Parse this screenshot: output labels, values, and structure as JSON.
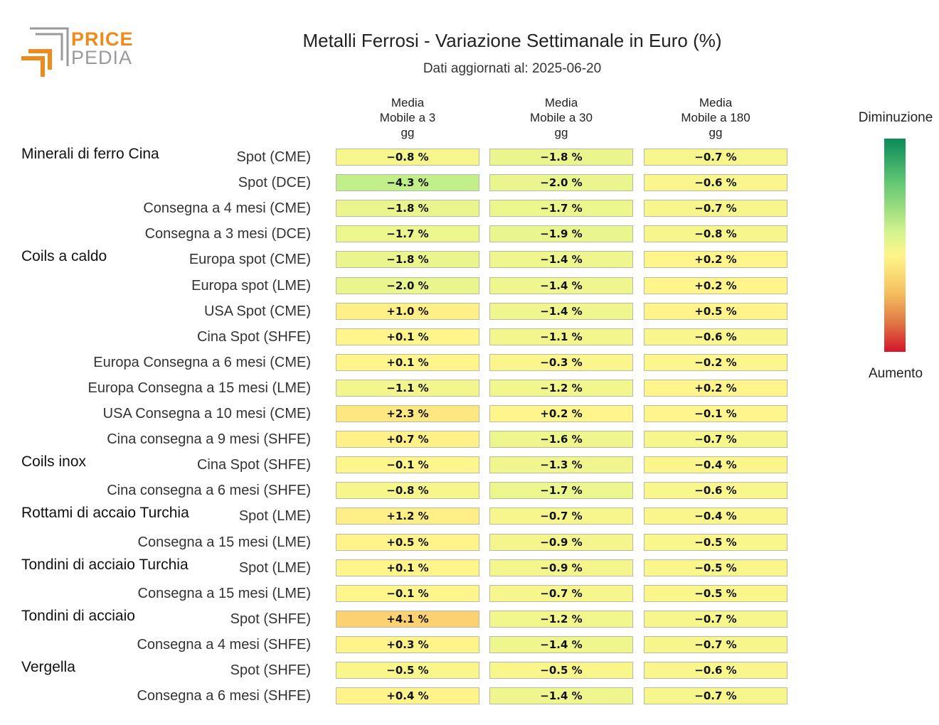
{
  "logo": {
    "line1": "PRICE",
    "line2": "PEDIA"
  },
  "chart_data": {
    "type": "heatmap",
    "title": "Metalli Ferrosi - Variazione Settimanale in Euro (%)",
    "subtitle": "Dati aggiornati al: 2025-06-20",
    "columns": [
      "Media\nMobile a 3\ngg",
      "Media\nMobile a 30\ngg",
      "Media\nMobile a 180\ngg"
    ],
    "groups": [
      {
        "name": "Minerali di ferro Cina",
        "rows": [
          {
            "label": "Spot (CME)",
            "values": [
              -0.8,
              -1.8,
              -0.7
            ]
          },
          {
            "label": "Spot (DCE)",
            "values": [
              -4.3,
              -2.0,
              -0.6
            ]
          },
          {
            "label": "Consegna a 4 mesi (CME)",
            "values": [
              -1.8,
              -1.7,
              -0.7
            ]
          },
          {
            "label": "Consegna a 3 mesi (DCE)",
            "values": [
              -1.7,
              -1.9,
              -0.8
            ]
          }
        ]
      },
      {
        "name": "Coils a caldo",
        "rows": [
          {
            "label": "Europa spot (CME)",
            "values": [
              -1.8,
              -1.4,
              0.2
            ]
          },
          {
            "label": "Europa spot (LME)",
            "values": [
              -2.0,
              -1.4,
              0.2
            ]
          },
          {
            "label": "USA Spot (CME)",
            "values": [
              1.0,
              -1.4,
              0.5
            ]
          },
          {
            "label": "Cina Spot (SHFE)",
            "values": [
              0.1,
              -1.1,
              -0.6
            ]
          },
          {
            "label": "Europa Consegna a 6 mesi (CME)",
            "values": [
              0.1,
              -0.3,
              -0.2
            ]
          },
          {
            "label": "Europa Consegna a 15 mesi (LME)",
            "values": [
              -1.1,
              -1.2,
              0.2
            ]
          },
          {
            "label": "USA Consegna a 10 mesi (CME)",
            "values": [
              2.3,
              0.2,
              -0.1
            ]
          },
          {
            "label": "Cina consegna a 9 mesi (SHFE)",
            "values": [
              0.7,
              -1.6,
              -0.7
            ]
          }
        ]
      },
      {
        "name": "Coils inox",
        "rows": [
          {
            "label": "Cina Spot (SHFE)",
            "values": [
              -0.1,
              -1.3,
              -0.4
            ]
          },
          {
            "label": "Cina consegna a 6 mesi (SHFE)",
            "values": [
              -0.8,
              -1.7,
              -0.6
            ]
          }
        ]
      },
      {
        "name": "Rottami di accaio Turchia",
        "rows": [
          {
            "label": "Spot (LME)",
            "values": [
              1.2,
              -0.7,
              -0.4
            ]
          },
          {
            "label": "Consegna a 15 mesi (LME)",
            "values": [
              0.5,
              -0.9,
              -0.5
            ]
          }
        ]
      },
      {
        "name": "Tondini di acciaio Turchia",
        "rows": [
          {
            "label": "Spot (LME)",
            "values": [
              0.1,
              -0.9,
              -0.5
            ]
          },
          {
            "label": "Consegna a 15 mesi (LME)",
            "values": [
              -0.1,
              -0.7,
              -0.5
            ]
          }
        ]
      },
      {
        "name": "Tondini di acciaio",
        "rows": [
          {
            "label": "Spot (SHFE)",
            "values": [
              4.1,
              -1.2,
              -0.7
            ]
          },
          {
            "label": "Consegna a 4 mesi (SHFE)",
            "values": [
              0.3,
              -1.4,
              -0.7
            ]
          }
        ]
      },
      {
        "name": "Vergella",
        "rows": [
          {
            "label": "Spot (SHFE)",
            "values": [
              -0.5,
              -0.5,
              -0.6
            ]
          },
          {
            "label": "Consegna a 6 mesi (SHFE)",
            "values": [
              0.4,
              -1.4,
              -0.7
            ]
          }
        ]
      }
    ],
    "value_suffix": " %",
    "legend": {
      "top_label": "Diminuzione",
      "bottom_label": "Aumento",
      "placement": "right"
    },
    "colors": {
      "negative_strong": "#1a8f5c",
      "neutral": "#fff68c",
      "positive_strong": "#d4142a"
    }
  }
}
